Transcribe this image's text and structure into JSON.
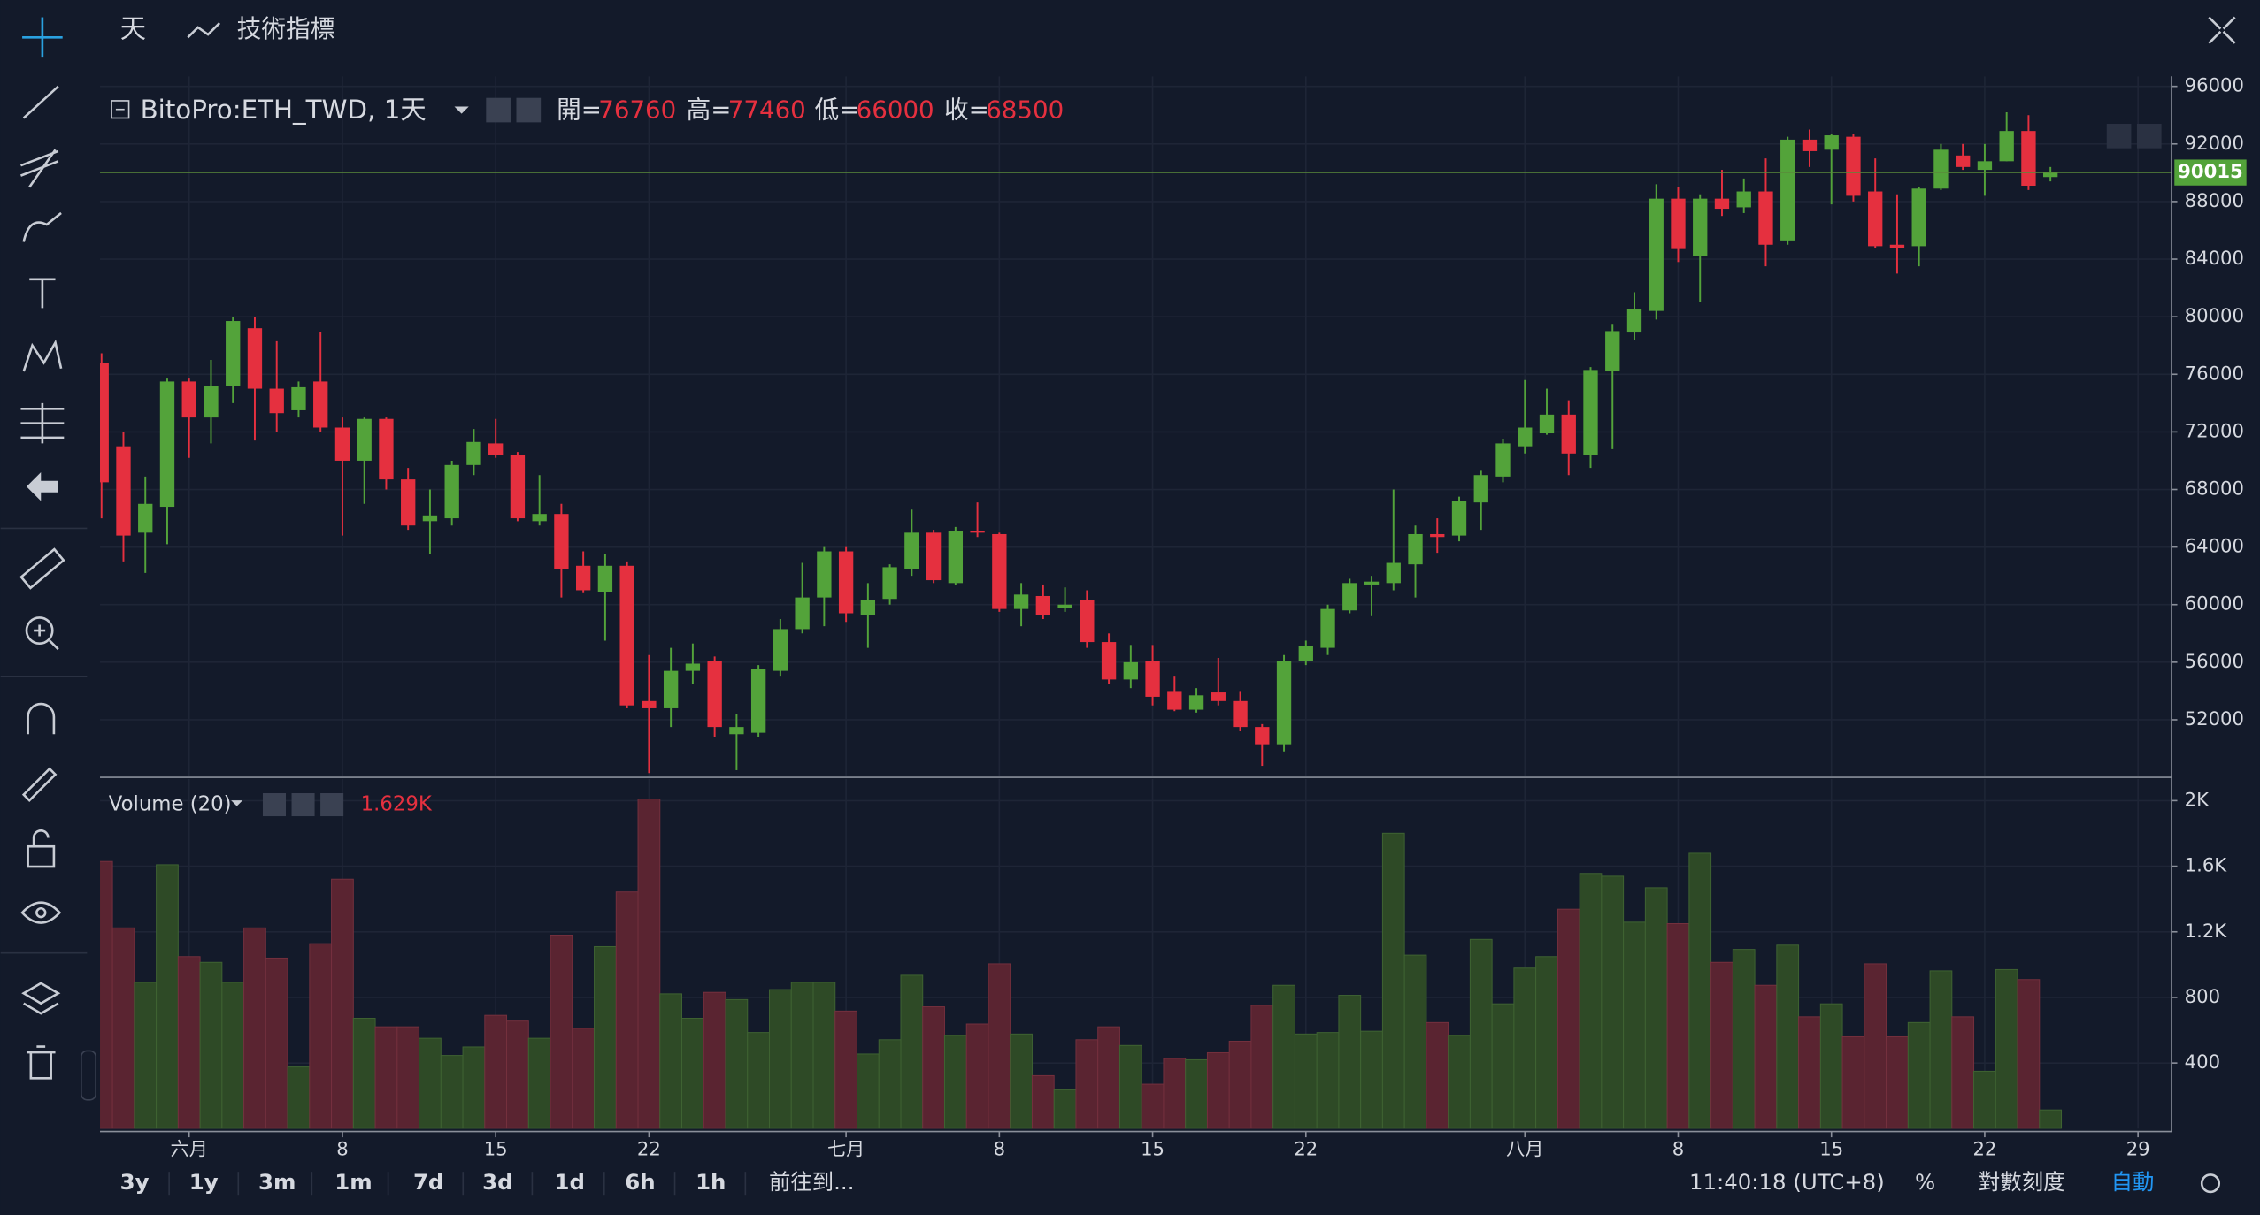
{
  "toolbar": {
    "interval": "天",
    "indicators": "技術指標"
  },
  "chart_data": [
    {
      "type": "candlestick",
      "title": "BitoPro:ETH_TWD, 1天",
      "legend": {
        "open_label": "開=",
        "high_label": "高=",
        "low_label": "低=",
        "close_label": "收="
      },
      "x": [
        0,
        1,
        2,
        3,
        4,
        5,
        6,
        7,
        8,
        9,
        10,
        11,
        12,
        13,
        14,
        15,
        16,
        17,
        18,
        19,
        20,
        21,
        22,
        23,
        24,
        25,
        26,
        27,
        28,
        29,
        30,
        31,
        32,
        33,
        34,
        35,
        36,
        37,
        38,
        39,
        40,
        41,
        42,
        43,
        44,
        45,
        46,
        47,
        48,
        49,
        50,
        51,
        52,
        53,
        54,
        55,
        56,
        57,
        58,
        59,
        60,
        61,
        62,
        63,
        64,
        65,
        66,
        67,
        68,
        69,
        70,
        71,
        72,
        73,
        74,
        75,
        76,
        77,
        78,
        79,
        80,
        81,
        82,
        83,
        84,
        85,
        86,
        87,
        88,
        89
      ],
      "open": [
        76760,
        71000,
        65000,
        66800,
        75500,
        73000,
        75200,
        79200,
        75000,
        73500,
        75500,
        72300,
        70000,
        72900,
        68700,
        65800,
        66000,
        69700,
        71200,
        70400,
        65800,
        66300,
        62700,
        60900,
        62700,
        53300,
        52800,
        55400,
        56100,
        51000,
        51100,
        55400,
        58300,
        60500,
        63700,
        59300,
        60400,
        62500,
        65000,
        61500,
        65100,
        64900,
        59700,
        60600,
        59800,
        60300,
        57400,
        54800,
        56100,
        54000,
        52700,
        53900,
        53300,
        51500,
        50300,
        56100,
        57000,
        59600,
        61400,
        61500,
        62800,
        64900,
        64800,
        67100,
        68900,
        71000,
        71900,
        73200,
        70400,
        76200,
        78900,
        80400,
        88200,
        84200,
        88200,
        87600,
        88700,
        85300,
        92300,
        91600,
        92500,
        88700,
        85000,
        84900,
        88900,
        91200,
        90200,
        90800,
        92900,
        89700
      ],
      "high": [
        77460,
        72000,
        68900,
        75700,
        75700,
        77000,
        80000,
        80000,
        78300,
        75500,
        78900,
        73000,
        73000,
        73000,
        69500,
        68000,
        70000,
        72200,
        72900,
        70600,
        69000,
        67000,
        63700,
        63500,
        63000,
        56500,
        57000,
        57300,
        56400,
        52400,
        55800,
        59000,
        62900,
        64000,
        64000,
        61500,
        62800,
        66600,
        65200,
        65400,
        67100,
        65000,
        61500,
        61400,
        61200,
        61000,
        58000,
        57200,
        57200,
        55000,
        54200,
        56300,
        54000,
        51700,
        56500,
        57500,
        60000,
        61800,
        62000,
        68000,
        65500,
        66000,
        67500,
        69300,
        71500,
        75600,
        75000,
        74200,
        76500,
        79500,
        81700,
        89200,
        89000,
        88500,
        90200,
        89600,
        91000,
        92500,
        93000,
        92700,
        92700,
        91000,
        88500,
        89000,
        92000,
        92000,
        92000,
        94200,
        94000,
        90400
      ],
      "low": [
        66000,
        63000,
        62200,
        64200,
        70200,
        71200,
        74000,
        71400,
        72000,
        73000,
        72000,
        64800,
        67000,
        68000,
        65200,
        63500,
        65500,
        69000,
        70200,
        65800,
        65500,
        60500,
        60800,
        57500,
        52800,
        48300,
        51500,
        54500,
        50800,
        48500,
        50800,
        55000,
        58000,
        58500,
        58800,
        57000,
        60000,
        62000,
        61500,
        61400,
        64700,
        59500,
        58500,
        59000,
        59500,
        57000,
        54500,
        54200,
        53000,
        52600,
        52500,
        53000,
        51200,
        48800,
        49800,
        55800,
        56500,
        59400,
        59200,
        61000,
        60500,
        63600,
        64400,
        65200,
        68500,
        70500,
        71800,
        69000,
        69500,
        70800,
        78400,
        79800,
        83800,
        81000,
        87000,
        87200,
        83500,
        85000,
        90400,
        87800,
        88000,
        84800,
        83000,
        83500,
        88800,
        90200,
        88400,
        90800,
        88800,
        89400
      ],
      "close": [
        68500,
        64800,
        67000,
        75500,
        73000,
        75200,
        79700,
        75000,
        73300,
        75100,
        72300,
        70000,
        72900,
        68700,
        65500,
        66200,
        69700,
        71300,
        70400,
        66000,
        66300,
        62500,
        61000,
        62700,
        53000,
        52800,
        55400,
        55900,
        51500,
        51500,
        55500,
        58300,
        60500,
        63700,
        59400,
        60300,
        62600,
        65000,
        61700,
        65100,
        65000,
        59700,
        60700,
        59300,
        60000,
        57400,
        54800,
        56000,
        53600,
        52700,
        53700,
        53300,
        51500,
        50300,
        56100,
        57100,
        59700,
        61500,
        61600,
        62900,
        64900,
        64700,
        67200,
        69000,
        71200,
        72300,
        73200,
        70500,
        76300,
        79000,
        80500,
        88200,
        84700,
        88200,
        87500,
        88700,
        85000,
        92300,
        91500,
        92600,
        88400,
        84900,
        84800,
        88900,
        91600,
        90400,
        90800,
        92900,
        89100,
        90015
      ],
      "up_color": "#53a33a",
      "down_color": "#e5303f",
      "xlim": [
        -0.07,
        94.53
      ],
      "xticks": [
        {
          "value": 4,
          "label": "六月"
        },
        {
          "value": 11,
          "label": "8"
        },
        {
          "value": 18,
          "label": "15"
        },
        {
          "value": 25,
          "label": "22"
        },
        {
          "value": 34,
          "label": "七月"
        },
        {
          "value": 41,
          "label": "8"
        },
        {
          "value": 48,
          "label": "15"
        },
        {
          "value": 55,
          "label": "22"
        },
        {
          "value": 65,
          "label": "八月"
        },
        {
          "value": 72,
          "label": "8"
        },
        {
          "value": 79,
          "label": "15"
        },
        {
          "value": 86,
          "label": "22"
        },
        {
          "value": 93,
          "label": "29"
        }
      ],
      "ylim": [
        48100,
        96700
      ],
      "yticks": [
        52000,
        56000,
        60000,
        64000,
        68000,
        72000,
        76000,
        80000,
        84000,
        88000,
        92000,
        96000
      ],
      "grid": true
    },
    {
      "type": "bar",
      "title": "Volume (20)",
      "legend_value": "1.629K",
      "values": [
        1629,
        1224,
        892,
        1609,
        1049,
        1014,
        892,
        1224,
        1040,
        376,
        1128,
        1521,
        673,
        621,
        621,
        551,
        446,
        498,
        691,
        656,
        551,
        1180,
        612,
        1110,
        1443,
        2010,
        822,
        673,
        831,
        787,
        586,
        848,
        892,
        892,
        717,
        455,
        542,
        935,
        743,
        568,
        638,
        1005,
        577,
        323,
        236,
        542,
        621,
        507,
        271,
        428,
        420,
        463,
        533,
        752,
        874,
        577,
        586,
        813,
        594,
        1801,
        1058,
        647,
        568,
        1154,
        761,
        979,
        1049,
        1338,
        1556,
        1539,
        1259,
        1469,
        1250,
        1679,
        1014,
        1093,
        874,
        1119,
        682,
        761,
        560,
        1005,
        560,
        647,
        962,
        682,
        350,
        970,
        909,
        114
      ],
      "up_color": "#2e4a26",
      "down_color": "#5a2431",
      "ylim": [
        0,
        2133
      ],
      "yticks": [
        400,
        800,
        {
          "value": 1200,
          "label": "1.2K"
        },
        {
          "value": 1600,
          "label": "1.6K"
        },
        {
          "value": 2000,
          "label": "2K"
        }
      ],
      "grid": true
    }
  ],
  "footer": {
    "ranges": [
      "3y",
      "1y",
      "3m",
      "1m",
      "7d",
      "3d",
      "1d",
      "6h",
      "1h"
    ],
    "goto": "前往到...",
    "clock": "11:40:18 (UTC+8)",
    "percent": "%",
    "log_scale": "對數刻度",
    "auto": "自動"
  }
}
